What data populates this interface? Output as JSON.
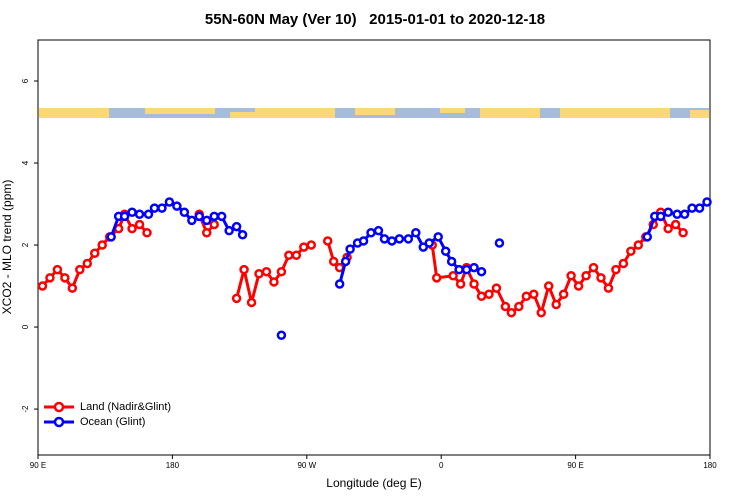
{
  "chart_data": {
    "type": "line",
    "title": "55N-60N May (Ver 10)   2015-01-01 to 2020-12-18",
    "x_label": "Longitude (deg E)",
    "y_label": "XCO2 - MLO trend (ppm)",
    "xlim": [
      90,
      540
    ],
    "ylim": [
      -3.12,
      7
    ],
    "xticks": [
      {
        "value": 90,
        "label": "90 E"
      },
      180,
      {
        "value": 270,
        "label": "90 W"
      },
      {
        "value": 360,
        "label": "0"
      },
      {
        "value": 450,
        "label": "90 E"
      },
      180
    ],
    "yticks": [
      -2,
      0,
      2,
      4,
      6
    ],
    "legend": "bottom-left",
    "series": [
      {
        "name": "Land (Nadir&Glint)",
        "color": "#ff0000",
        "x": [
          93,
          98,
          103,
          108,
          113,
          118,
          123,
          128,
          133,
          138,
          144,
          148,
          153,
          158,
          163,
          null,
          198,
          203,
          208,
          null,
          223,
          228,
          233,
          238,
          243,
          248,
          253,
          258,
          263,
          268,
          273,
          null,
          284,
          288,
          292,
          297,
          null,
          354,
          357,
          368,
          373,
          377,
          382,
          387,
          392,
          397,
          403,
          407,
          412,
          417,
          422,
          427,
          432,
          437,
          442,
          447,
          452,
          457,
          462,
          467,
          472,
          477,
          482,
          487,
          492,
          497,
          502,
          507,
          512,
          517,
          522
        ],
        "values": [
          1.0,
          1.2,
          1.4,
          1.2,
          0.95,
          1.4,
          1.55,
          1.8,
          2.0,
          2.2,
          2.4,
          2.75,
          2.4,
          2.5,
          2.3,
          null,
          2.75,
          2.3,
          2.5,
          null,
          0.7,
          1.4,
          0.6,
          1.3,
          1.35,
          1.1,
          1.35,
          1.75,
          1.75,
          1.95,
          2.0,
          null,
          2.1,
          1.6,
          1.45,
          1.7,
          null,
          2.0,
          1.2,
          1.25,
          1.05,
          1.45,
          1.05,
          0.75,
          0.8,
          0.95,
          0.5,
          0.35,
          0.5,
          0.75,
          0.8,
          0.35,
          1.0,
          0.55,
          0.8,
          1.25,
          1.0,
          1.25,
          1.45,
          1.2,
          0.95,
          1.4,
          1.55,
          1.85,
          2.0,
          2.2,
          2.5,
          2.8,
          2.4,
          2.5,
          2.3
        ]
      },
      {
        "name": "Ocean (Glint)",
        "color": "#0000ff",
        "x": [
          139,
          144,
          148,
          153,
          158,
          164,
          168,
          173,
          178,
          183,
          188,
          193,
          198,
          203,
          208,
          213,
          218,
          223,
          227,
          null,
          253,
          null,
          292,
          296,
          299,
          304,
          308,
          313,
          318,
          322,
          327,
          332,
          338,
          343,
          348,
          352,
          358,
          363,
          367,
          372,
          377,
          382,
          387,
          null,
          399,
          null,
          498,
          503,
          507,
          512,
          518,
          523,
          528,
          533,
          538
        ],
        "values": [
          2.2,
          2.7,
          2.7,
          2.8,
          2.75,
          2.75,
          2.9,
          2.9,
          3.05,
          2.95,
          2.8,
          2.6,
          2.7,
          2.6,
          2.7,
          2.7,
          2.35,
          2.45,
          2.25,
          null,
          -0.2,
          null,
          1.05,
          1.6,
          1.9,
          2.05,
          2.1,
          2.3,
          2.35,
          2.15,
          2.1,
          2.15,
          2.15,
          2.3,
          1.95,
          2.05,
          2.2,
          1.85,
          1.6,
          1.4,
          1.4,
          1.45,
          1.35,
          null,
          2.05,
          null,
          2.2,
          2.7,
          2.7,
          2.8,
          2.75,
          2.75,
          2.9,
          2.9,
          3.05
        ]
      }
    ]
  }
}
